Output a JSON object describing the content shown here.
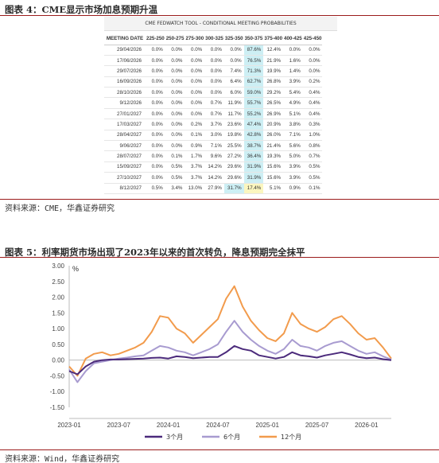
{
  "fig4": {
    "title": "图表 4：CME显示市场加息预期升温",
    "table_title": "CME FEDWATCH TOOL - CONDITIONAL MEETING PROBABILITIES",
    "headers": [
      "MEETING DATE",
      "225-250",
      "250-275",
      "275-300",
      "300-325",
      "325-350",
      "350-375",
      "375-400",
      "400-425",
      "425-450"
    ],
    "rows": [
      [
        "29/04/2026",
        "0.0%",
        "0.0%",
        "0.0%",
        "0.0%",
        "0.0%",
        "87.6%",
        "12.4%",
        "0.0%",
        "0.0%"
      ],
      [
        "17/06/2026",
        "0.0%",
        "0.0%",
        "0.0%",
        "0.0%",
        "0.0%",
        "76.5%",
        "21.9%",
        "1.6%",
        "0.0%"
      ],
      [
        "29/07/2026",
        "0.0%",
        "0.0%",
        "0.0%",
        "0.0%",
        "7.4%",
        "71.3%",
        "19.9%",
        "1.4%",
        "0.0%"
      ],
      [
        "16/09/2026",
        "0.0%",
        "0.0%",
        "0.0%",
        "0.0%",
        "6.4%",
        "62.7%",
        "26.8%",
        "3.9%",
        "0.2%"
      ],
      [
        "28/10/2026",
        "0.0%",
        "0.0%",
        "0.0%",
        "0.0%",
        "6.0%",
        "59.0%",
        "29.2%",
        "5.4%",
        "0.4%"
      ],
      [
        "9/12/2026",
        "0.0%",
        "0.0%",
        "0.0%",
        "0.7%",
        "11.9%",
        "55.7%",
        "26.5%",
        "4.9%",
        "0.4%"
      ],
      [
        "27/01/2027",
        "0.0%",
        "0.0%",
        "0.0%",
        "0.7%",
        "11.7%",
        "55.2%",
        "26.9%",
        "5.1%",
        "0.4%"
      ],
      [
        "17/03/2027",
        "0.0%",
        "0.0%",
        "0.2%",
        "3.7%",
        "23.6%",
        "47.4%",
        "20.9%",
        "3.8%",
        "0.3%"
      ],
      [
        "28/04/2027",
        "0.0%",
        "0.0%",
        "0.1%",
        "3.0%",
        "19.8%",
        "42.8%",
        "26.0%",
        "7.1%",
        "1.0%"
      ],
      [
        "9/06/2027",
        "0.0%",
        "0.0%",
        "0.9%",
        "7.1%",
        "25.5%",
        "38.7%",
        "21.4%",
        "5.6%",
        "0.8%"
      ],
      [
        "28/07/2027",
        "0.0%",
        "0.1%",
        "1.7%",
        "9.6%",
        "27.2%",
        "36.4%",
        "19.3%",
        "5.0%",
        "0.7%"
      ],
      [
        "15/09/2027",
        "0.0%",
        "0.5%",
        "3.7%",
        "14.2%",
        "29.6%",
        "31.9%",
        "15.6%",
        "3.9%",
        "0.5%"
      ],
      [
        "27/10/2027",
        "0.0%",
        "0.5%",
        "3.7%",
        "14.2%",
        "29.6%",
        "31.9%",
        "15.6%",
        "3.9%",
        "0.5%"
      ],
      [
        "8/12/2027",
        "0.5%",
        "3.4%",
        "13.0%",
        "27.9%",
        "31.7%",
        "17.4%",
        "5.1%",
        "0.9%",
        "0.1%"
      ]
    ],
    "highlight_color": "#cdeff4",
    "highlight_yellow": "#fbf6bf",
    "source": "资料来源：CME，华鑫证券研究"
  },
  "fig5": {
    "title": "图表 5：利率期货市场出现了2023年以来的首次转负，降息预期完全抹平",
    "unit": "%",
    "source": "资料来源：Wind，华鑫证券研究"
  },
  "chart_data": {
    "type": "line",
    "title": "图表 5：利率期货市场出现了2023年以来的首次转负，降息预期完全抹平",
    "ylabel": "%",
    "xlabel": "",
    "ylim": [
      -1.5,
      3.0
    ],
    "yticks": [
      "3.00",
      "2.50",
      "2.00",
      "1.50",
      "1.00",
      "0.50",
      "0.00",
      "-0.50",
      "-1.00",
      "-1.50"
    ],
    "xlim": [
      "2023-01",
      "2026-04"
    ],
    "xticks": [
      "2023-01",
      "2023-07",
      "2024-01",
      "2024-07",
      "2025-01",
      "2025-07",
      "2026-01"
    ],
    "grid": false,
    "legend_position": "bottom",
    "series": [
      {
        "name": "3个月",
        "color": "#4b2a7b",
        "points": [
          [
            "2023-01",
            -0.35
          ],
          [
            "2023-02",
            -0.45
          ],
          [
            "2023-03",
            -0.2
          ],
          [
            "2023-04",
            -0.05
          ],
          [
            "2023-05",
            0.0
          ],
          [
            "2023-06",
            0.02
          ],
          [
            "2023-07",
            0.02
          ],
          [
            "2023-08",
            0.03
          ],
          [
            "2023-09",
            0.04
          ],
          [
            "2023-10",
            0.05
          ],
          [
            "2023-11",
            0.07
          ],
          [
            "2023-12",
            0.08
          ],
          [
            "2024-01",
            0.05
          ],
          [
            "2024-02",
            0.12
          ],
          [
            "2024-03",
            0.1
          ],
          [
            "2024-04",
            0.06
          ],
          [
            "2024-05",
            0.08
          ],
          [
            "2024-06",
            0.1
          ],
          [
            "2024-07",
            0.1
          ],
          [
            "2024-08",
            0.25
          ],
          [
            "2024-09",
            0.45
          ],
          [
            "2024-10",
            0.35
          ],
          [
            "2024-11",
            0.3
          ],
          [
            "2024-12",
            0.15
          ],
          [
            "2025-01",
            0.1
          ],
          [
            "2025-02",
            0.05
          ],
          [
            "2025-03",
            0.1
          ],
          [
            "2025-04",
            0.25
          ],
          [
            "2025-05",
            0.15
          ],
          [
            "2025-06",
            0.12
          ],
          [
            "2025-07",
            0.08
          ],
          [
            "2025-08",
            0.15
          ],
          [
            "2025-09",
            0.2
          ],
          [
            "2025-10",
            0.25
          ],
          [
            "2025-11",
            0.18
          ],
          [
            "2025-12",
            0.1
          ],
          [
            "2026-01",
            0.06
          ],
          [
            "2026-02",
            0.08
          ],
          [
            "2026-03",
            0.03
          ],
          [
            "2026-04",
            0.0
          ]
        ]
      },
      {
        "name": "6个月",
        "color": "#a89bd0",
        "points": [
          [
            "2023-01",
            -0.3
          ],
          [
            "2023-02",
            -0.7
          ],
          [
            "2023-03",
            -0.35
          ],
          [
            "2023-04",
            -0.1
          ],
          [
            "2023-05",
            -0.05
          ],
          [
            "2023-06",
            0.0
          ],
          [
            "2023-07",
            0.05
          ],
          [
            "2023-08",
            0.08
          ],
          [
            "2023-09",
            0.12
          ],
          [
            "2023-10",
            0.15
          ],
          [
            "2023-11",
            0.3
          ],
          [
            "2023-12",
            0.45
          ],
          [
            "2024-01",
            0.4
          ],
          [
            "2024-02",
            0.3
          ],
          [
            "2024-03",
            0.25
          ],
          [
            "2024-04",
            0.15
          ],
          [
            "2024-05",
            0.25
          ],
          [
            "2024-06",
            0.35
          ],
          [
            "2024-07",
            0.5
          ],
          [
            "2024-08",
            0.9
          ],
          [
            "2024-09",
            1.25
          ],
          [
            "2024-10",
            0.9
          ],
          [
            "2024-11",
            0.65
          ],
          [
            "2024-12",
            0.45
          ],
          [
            "2025-01",
            0.3
          ],
          [
            "2025-02",
            0.2
          ],
          [
            "2025-03",
            0.35
          ],
          [
            "2025-04",
            0.65
          ],
          [
            "2025-05",
            0.45
          ],
          [
            "2025-06",
            0.4
          ],
          [
            "2025-07",
            0.3
          ],
          [
            "2025-08",
            0.45
          ],
          [
            "2025-09",
            0.55
          ],
          [
            "2025-10",
            0.6
          ],
          [
            "2025-11",
            0.45
          ],
          [
            "2025-12",
            0.3
          ],
          [
            "2026-01",
            0.2
          ],
          [
            "2026-02",
            0.25
          ],
          [
            "2026-03",
            0.12
          ],
          [
            "2026-04",
            0.02
          ]
        ]
      },
      {
        "name": "12个月",
        "color": "#f29b4c",
        "points": [
          [
            "2023-01",
            -0.2
          ],
          [
            "2023-02",
            -0.5
          ],
          [
            "2023-03",
            0.05
          ],
          [
            "2023-04",
            0.2
          ],
          [
            "2023-05",
            0.25
          ],
          [
            "2023-06",
            0.15
          ],
          [
            "2023-07",
            0.2
          ],
          [
            "2023-08",
            0.3
          ],
          [
            "2023-09",
            0.4
          ],
          [
            "2023-10",
            0.55
          ],
          [
            "2023-11",
            0.9
          ],
          [
            "2023-12",
            1.4
          ],
          [
            "2024-01",
            1.35
          ],
          [
            "2024-02",
            1.0
          ],
          [
            "2024-03",
            0.85
          ],
          [
            "2024-04",
            0.55
          ],
          [
            "2024-05",
            0.8
          ],
          [
            "2024-06",
            1.05
          ],
          [
            "2024-07",
            1.3
          ],
          [
            "2024-08",
            1.95
          ],
          [
            "2024-09",
            2.35
          ],
          [
            "2024-10",
            1.7
          ],
          [
            "2024-11",
            1.25
          ],
          [
            "2024-12",
            0.95
          ],
          [
            "2025-01",
            0.7
          ],
          [
            "2025-02",
            0.6
          ],
          [
            "2025-03",
            0.85
          ],
          [
            "2025-04",
            1.5
          ],
          [
            "2025-05",
            1.15
          ],
          [
            "2025-06",
            1.0
          ],
          [
            "2025-07",
            0.9
          ],
          [
            "2025-08",
            1.05
          ],
          [
            "2025-09",
            1.3
          ],
          [
            "2025-10",
            1.4
          ],
          [
            "2025-11",
            1.15
          ],
          [
            "2025-12",
            0.85
          ],
          [
            "2026-01",
            0.65
          ],
          [
            "2026-02",
            0.7
          ],
          [
            "2026-03",
            0.4
          ],
          [
            "2026-04",
            0.05
          ]
        ]
      }
    ]
  }
}
